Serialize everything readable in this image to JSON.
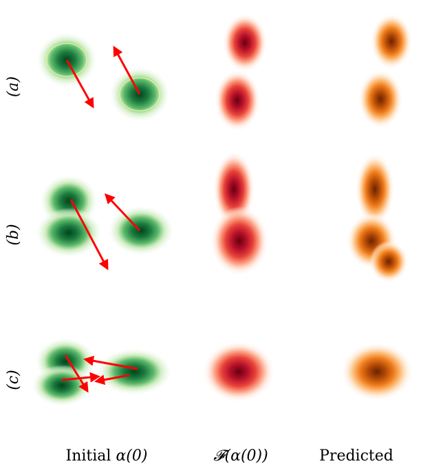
{
  "rows": [
    {
      "label": "(a)"
    },
    {
      "label": "(b)"
    },
    {
      "label": "(c)"
    }
  ],
  "columns": [
    {
      "prefix": "Initial ",
      "math": "α(0)"
    },
    {
      "prefix": "",
      "math": "𝓕(α(0))"
    },
    {
      "prefix": "Predicted",
      "math": ""
    }
  ],
  "colors": {
    "initial": "#1a7a3e",
    "mapped": "#b5102a",
    "predicted": "#a6440a",
    "arrow": "#ff0000"
  }
}
